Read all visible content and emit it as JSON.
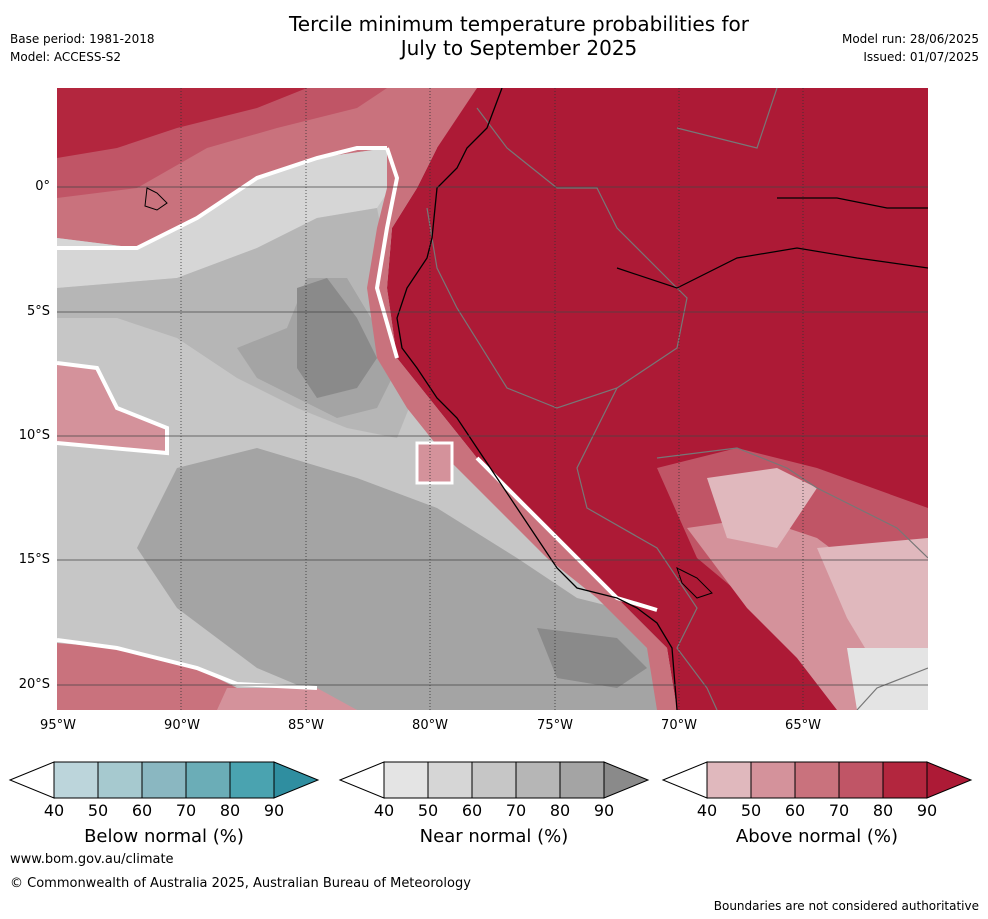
{
  "header": {
    "title_line1": "Tercile minimum temperature probabilities for",
    "title_line2": "July to September 2025",
    "base_period": "Base period: 1981-2018",
    "model": "Model: ACCESS-S2",
    "model_run": "Model run: 28/06/2025",
    "issued": "Issued: 01/07/2025"
  },
  "map": {
    "lat_ticks": [
      "0°",
      "5°S",
      "10°S",
      "15°S",
      "20°S"
    ],
    "lon_ticks": [
      "95°W",
      "90°W",
      "85°W",
      "80°W",
      "75°W",
      "70°W",
      "65°W"
    ],
    "colors": {
      "above": [
        "#e0b8bd",
        "#d4929b",
        "#c9727d",
        "#c05566",
        "#b3263e",
        "#ad1a36"
      ],
      "near": [
        "#e4e4e4",
        "#d6d6d6",
        "#c6c6c6",
        "#b6b6b6",
        "#a4a4a4",
        "#8a8a8a"
      ],
      "below": [
        "#bcd5db",
        "#a6c9cf",
        "#8ab7c1",
        "#6badb7",
        "#4aa3b0",
        "#2f8ea0"
      ],
      "ocean_bg": "#c4c4c4",
      "land_bg": "#b01c3a"
    }
  },
  "colorbars": [
    {
      "label": "Below normal (%)",
      "ticks": [
        "40",
        "50",
        "60",
        "70",
        "80",
        "90"
      ],
      "colors": [
        "#bcd5db",
        "#a6c9cf",
        "#8ab7c1",
        "#6badb7",
        "#4aa3b0",
        "#2f8ea0"
      ]
    },
    {
      "label": "Near normal (%)",
      "ticks": [
        "40",
        "50",
        "60",
        "70",
        "80",
        "90"
      ],
      "colors": [
        "#e4e4e4",
        "#d6d6d6",
        "#c6c6c6",
        "#b6b6b6",
        "#a4a4a4",
        "#8a8a8a"
      ]
    },
    {
      "label": "Above normal (%)",
      "ticks": [
        "40",
        "50",
        "60",
        "70",
        "80",
        "90"
      ],
      "colors": [
        "#e0b8bd",
        "#d4929b",
        "#c9727d",
        "#c05566",
        "#b3263e",
        "#ad1a36"
      ]
    }
  ],
  "footer": {
    "url": "www.bom.gov.au/climate",
    "copyright": "© Commonwealth of Australia 2025, Australian Bureau of Meteorology",
    "disclaimer": "Boundaries are not considered authoritative"
  }
}
